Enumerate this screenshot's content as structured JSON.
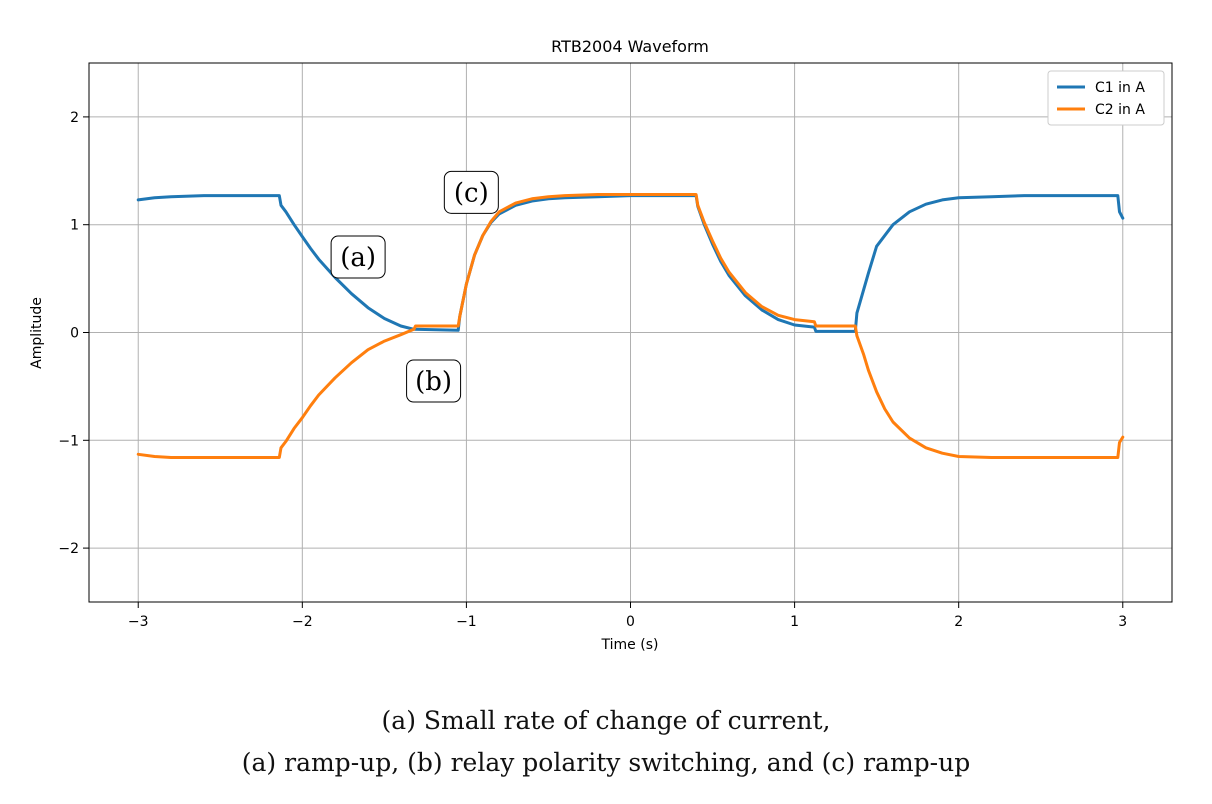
{
  "chart_data": {
    "type": "line",
    "title": "RTB2004 Waveform",
    "xlabel": "Time (s)",
    "ylabel": "Amplitude",
    "xlim": [
      -3.3,
      3.3
    ],
    "ylim": [
      -2.5,
      2.5
    ],
    "xticks": [
      -3,
      -2,
      -1,
      0,
      1,
      2,
      3
    ],
    "xtick_labels": [
      "−3",
      "−2",
      "−1",
      "0",
      "1",
      "2",
      "3"
    ],
    "yticks": [
      -2,
      -1,
      0,
      1,
      2
    ],
    "ytick_labels": [
      "−2",
      "−1",
      "0",
      "1",
      "2"
    ],
    "grid": true,
    "legend_position": "top-right",
    "series": [
      {
        "name": "C1 in A",
        "color": "#1f77b4",
        "x": [
          -3.0,
          -2.9,
          -2.8,
          -2.6,
          -2.4,
          -2.2,
          -2.14,
          -2.13,
          -2.1,
          -2.05,
          -2.0,
          -1.95,
          -1.9,
          -1.8,
          -1.7,
          -1.6,
          -1.5,
          -1.4,
          -1.32,
          -1.05,
          -1.04,
          -1.0,
          -0.95,
          -0.9,
          -0.85,
          -0.8,
          -0.7,
          -0.6,
          -0.5,
          -0.4,
          -0.2,
          0.0,
          0.2,
          0.4,
          0.41,
          0.45,
          0.5,
          0.55,
          0.6,
          0.7,
          0.8,
          0.9,
          1.0,
          1.12,
          1.13,
          1.37,
          1.38,
          1.45,
          1.5,
          1.6,
          1.7,
          1.8,
          1.9,
          2.0,
          2.2,
          2.4,
          2.6,
          2.8,
          2.97,
          2.98,
          3.0
        ],
        "y": [
          1.23,
          1.25,
          1.26,
          1.27,
          1.27,
          1.27,
          1.27,
          1.18,
          1.12,
          1.0,
          0.89,
          0.78,
          0.68,
          0.51,
          0.36,
          0.23,
          0.13,
          0.06,
          0.03,
          0.02,
          0.15,
          0.45,
          0.72,
          0.9,
          1.02,
          1.1,
          1.18,
          1.22,
          1.24,
          1.25,
          1.26,
          1.27,
          1.27,
          1.27,
          1.17,
          1.0,
          0.82,
          0.66,
          0.53,
          0.34,
          0.21,
          0.12,
          0.07,
          0.05,
          0.01,
          0.01,
          0.18,
          0.55,
          0.8,
          1.0,
          1.12,
          1.19,
          1.23,
          1.25,
          1.26,
          1.27,
          1.27,
          1.27,
          1.27,
          1.12,
          1.06
        ]
      },
      {
        "name": "C2 in A",
        "color": "#ff7f0e",
        "x": [
          -3.0,
          -2.9,
          -2.8,
          -2.6,
          -2.4,
          -2.2,
          -2.14,
          -2.13,
          -2.1,
          -2.05,
          -2.0,
          -1.95,
          -1.9,
          -1.8,
          -1.7,
          -1.6,
          -1.5,
          -1.4,
          -1.32,
          -1.31,
          -1.05,
          -1.04,
          -1.0,
          -0.95,
          -0.9,
          -0.85,
          -0.8,
          -0.7,
          -0.6,
          -0.5,
          -0.4,
          -0.2,
          0.0,
          0.2,
          0.4,
          0.41,
          0.45,
          0.5,
          0.55,
          0.6,
          0.7,
          0.8,
          0.9,
          1.0,
          1.12,
          1.13,
          1.37,
          1.38,
          1.42,
          1.45,
          1.5,
          1.55,
          1.6,
          1.7,
          1.8,
          1.9,
          2.0,
          2.2,
          2.4,
          2.6,
          2.8,
          2.97,
          2.98,
          3.0
        ],
        "y": [
          -1.13,
          -1.15,
          -1.16,
          -1.16,
          -1.16,
          -1.16,
          -1.16,
          -1.07,
          -1.01,
          -0.89,
          -0.79,
          -0.68,
          -0.58,
          -0.42,
          -0.28,
          -0.16,
          -0.08,
          -0.02,
          0.03,
          0.06,
          0.06,
          0.15,
          0.45,
          0.72,
          0.9,
          1.03,
          1.12,
          1.2,
          1.24,
          1.26,
          1.27,
          1.28,
          1.28,
          1.28,
          1.28,
          1.18,
          1.02,
          0.85,
          0.69,
          0.56,
          0.37,
          0.24,
          0.16,
          0.12,
          0.1,
          0.06,
          0.06,
          -0.03,
          -0.2,
          -0.35,
          -0.55,
          -0.71,
          -0.83,
          -0.98,
          -1.07,
          -1.12,
          -1.15,
          -1.16,
          -1.16,
          -1.16,
          -1.16,
          -1.16,
          -1.02,
          -0.97
        ]
      }
    ],
    "annotations": [
      {
        "text": "(a)",
        "x": -1.66,
        "y": 0.7
      },
      {
        "text": "(b)",
        "x": -1.2,
        "y": -0.45
      },
      {
        "text": "(c)",
        "x": -0.97,
        "y": 1.3
      }
    ]
  },
  "caption": {
    "line1": "(a) Small rate of change of current,",
    "line2": "(a) ramp-up, (b) relay polarity switching, and (c) ramp-up"
  }
}
